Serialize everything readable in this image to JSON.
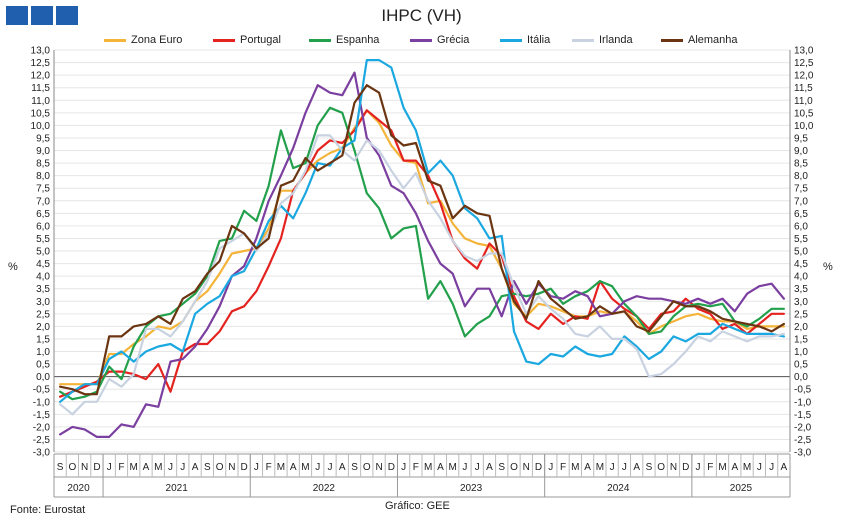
{
  "header": {
    "title": "IHPC (VH)"
  },
  "footer": {
    "source": "Fonte: Eurostat",
    "credit": "Gráfico: GEE"
  },
  "chart_data": {
    "type": "line",
    "title": "IHPC (VH)",
    "ylabel_left": "%",
    "ylabel_right": "%",
    "ylim": [
      -3,
      13
    ],
    "ytick_step": 0.5,
    "grid": "horizontal",
    "legend_position": "top",
    "month_labels": [
      "S",
      "O",
      "N",
      "D",
      "J",
      "F",
      "M",
      "A",
      "M",
      "J",
      "J",
      "A",
      "S",
      "O",
      "N",
      "D",
      "J",
      "F",
      "M",
      "A",
      "M",
      "J",
      "J",
      "A",
      "S",
      "O",
      "N",
      "D",
      "J",
      "F",
      "M",
      "A",
      "M",
      "J",
      "J",
      "A",
      "S",
      "O",
      "N",
      "D",
      "J",
      "F",
      "M",
      "A",
      "M",
      "J",
      "J",
      "A",
      "S",
      "O",
      "N",
      "D",
      "J",
      "F",
      "M",
      "A",
      "M",
      "J",
      "J",
      "A"
    ],
    "year_groups": [
      {
        "label": "2020",
        "months": 4
      },
      {
        "label": "2021",
        "months": 12
      },
      {
        "label": "2022",
        "months": 12
      },
      {
        "label": "2023",
        "months": 12
      },
      {
        "label": "2024",
        "months": 12
      },
      {
        "label": "2025",
        "months": 8
      }
    ],
    "series": [
      {
        "name": "Zona Euro",
        "color": "#f4b43a",
        "values": [
          -0.3,
          -0.3,
          -0.3,
          -0.3,
          0.9,
          0.9,
          1.3,
          1.6,
          2.0,
          1.9,
          2.2,
          3.0,
          3.4,
          4.1,
          4.9,
          5.0,
          5.1,
          5.9,
          7.4,
          7.4,
          8.1,
          8.6,
          8.9,
          9.1,
          9.9,
          10.6,
          10.1,
          9.2,
          8.6,
          8.5,
          6.9,
          7.0,
          6.1,
          5.5,
          5.3,
          5.2,
          4.3,
          2.9,
          2.4,
          2.9,
          2.8,
          2.6,
          2.4,
          2.4,
          2.6,
          2.5,
          2.6,
          2.2,
          1.7,
          2.0,
          2.2,
          2.4,
          2.5,
          2.3,
          2.2,
          2.2,
          1.9,
          2.0,
          2.0,
          2.0
        ]
      },
      {
        "name": "Portugal",
        "color": "#e42320",
        "values": [
          -0.8,
          -0.6,
          -0.4,
          -0.2,
          0.2,
          0.2,
          0.1,
          -0.1,
          0.5,
          -0.6,
          1.0,
          1.3,
          1.3,
          1.8,
          2.6,
          2.8,
          3.4,
          4.4,
          5.5,
          7.4,
          8.1,
          9.0,
          9.4,
          9.3,
          9.8,
          10.6,
          10.2,
          9.8,
          8.6,
          8.6,
          8.0,
          6.9,
          5.4,
          4.7,
          4.3,
          5.3,
          4.8,
          3.2,
          2.2,
          1.9,
          2.5,
          2.1,
          2.4,
          2.3,
          3.8,
          3.1,
          2.7,
          2.4,
          1.9,
          2.5,
          2.6,
          3.1,
          2.7,
          2.5,
          1.9,
          2.1,
          1.7,
          2.1,
          2.5,
          2.5
        ]
      },
      {
        "name": "Espanha",
        "color": "#22a04b",
        "values": [
          -0.6,
          -0.9,
          -0.8,
          -0.6,
          0.4,
          -0.1,
          1.2,
          2.0,
          2.4,
          2.5,
          2.9,
          3.3,
          4.0,
          5.4,
          5.5,
          6.6,
          6.2,
          7.6,
          9.8,
          8.3,
          8.5,
          10.0,
          10.7,
          10.5,
          9.0,
          7.3,
          6.7,
          5.5,
          5.9,
          6.0,
          3.1,
          3.8,
          2.9,
          1.6,
          2.1,
          2.4,
          3.2,
          3.3,
          3.2,
          3.3,
          3.5,
          2.9,
          3.2,
          3.4,
          3.8,
          3.6,
          2.9,
          2.4,
          1.7,
          1.8,
          2.4,
          2.8,
          2.9,
          2.8,
          2.9,
          2.2,
          2.0,
          2.3,
          2.7,
          2.7
        ]
      },
      {
        "name": "Grécia",
        "color": "#7b3fa0",
        "values": [
          -2.3,
          -2.0,
          -2.1,
          -2.4,
          -2.4,
          -1.9,
          -2.0,
          -1.1,
          -1.2,
          0.6,
          0.7,
          1.2,
          1.9,
          2.8,
          4.0,
          4.4,
          5.5,
          7.0,
          8.0,
          9.1,
          10.5,
          11.6,
          11.3,
          11.2,
          12.1,
          9.5,
          8.8,
          7.6,
          7.3,
          6.5,
          5.4,
          4.5,
          4.1,
          2.8,
          3.5,
          3.5,
          2.4,
          3.8,
          2.9,
          3.7,
          3.2,
          3.1,
          3.4,
          3.2,
          2.4,
          2.5,
          3.0,
          3.2,
          3.1,
          3.1,
          3.0,
          2.9,
          3.1,
          2.9,
          3.1,
          2.6,
          3.3,
          3.6,
          3.7,
          3.1
        ]
      },
      {
        "name": "Itália",
        "color": "#1ba8e0",
        "values": [
          -1.0,
          -0.6,
          -0.3,
          -0.3,
          0.7,
          1.0,
          0.6,
          1.0,
          1.2,
          1.3,
          1.0,
          2.5,
          2.9,
          3.2,
          4.0,
          4.2,
          5.1,
          6.2,
          6.8,
          6.3,
          7.3,
          8.5,
          8.4,
          9.1,
          9.4,
          12.6,
          12.6,
          12.3,
          10.7,
          9.8,
          8.1,
          8.6,
          8.0,
          6.7,
          6.3,
          5.5,
          5.6,
          1.8,
          0.6,
          0.5,
          0.9,
          0.8,
          1.2,
          0.9,
          0.8,
          0.9,
          1.6,
          1.2,
          0.7,
          1.0,
          1.6,
          1.4,
          1.7,
          1.7,
          2.1,
          1.9,
          1.7,
          1.7,
          1.7,
          1.6
        ]
      },
      {
        "name": "Irlanda",
        "color": "#c8d2e0",
        "values": [
          -1.1,
          -1.5,
          -1.0,
          -1.0,
          -0.1,
          -0.4,
          0.1,
          1.9,
          1.9,
          1.6,
          2.2,
          3.0,
          3.8,
          5.1,
          5.4,
          5.7,
          5.0,
          5.7,
          6.9,
          7.3,
          8.2,
          9.6,
          9.6,
          9.0,
          8.6,
          9.4,
          9.0,
          8.2,
          7.5,
          8.1,
          7.0,
          6.3,
          5.4,
          4.8,
          4.6,
          4.9,
          4.9,
          3.6,
          2.5,
          3.2,
          2.7,
          2.3,
          1.7,
          1.6,
          2.0,
          1.5,
          1.5,
          1.1,
          0.0,
          0.1,
          0.5,
          1.0,
          1.6,
          1.4,
          1.8,
          1.6,
          1.4,
          1.6,
          1.6,
          1.7
        ]
      },
      {
        "name": "Alemanha",
        "color": "#6b3512",
        "values": [
          -0.4,
          -0.5,
          -0.7,
          -0.7,
          1.6,
          1.6,
          2.0,
          2.1,
          2.4,
          2.1,
          3.1,
          3.4,
          4.1,
          4.6,
          6.0,
          5.7,
          5.1,
          5.5,
          7.6,
          7.8,
          8.7,
          8.2,
          8.5,
          8.8,
          10.9,
          11.6,
          11.3,
          9.6,
          9.2,
          9.3,
          7.8,
          7.6,
          6.3,
          6.8,
          6.5,
          6.4,
          4.3,
          3.0,
          2.3,
          3.8,
          3.1,
          2.7,
          2.3,
          2.4,
          2.8,
          2.5,
          2.6,
          2.0,
          1.8,
          2.4,
          3.0,
          2.8,
          2.8,
          2.6,
          2.3,
          2.2,
          2.1,
          2.0,
          1.8,
          2.1
        ]
      }
    ]
  }
}
